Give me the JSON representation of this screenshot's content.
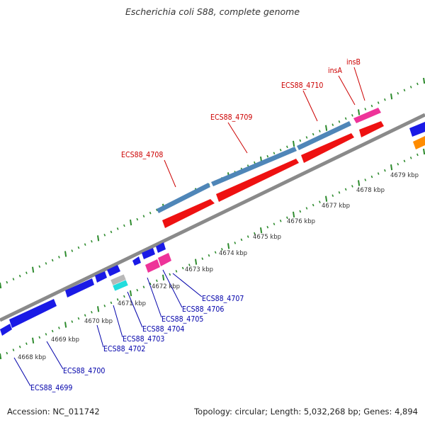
{
  "title": "Escherichia coli S88, complete genome",
  "footer": {
    "accession": "Accession: NC_011742",
    "stats": "Topology: circular; Length: 5,032,268 bp; Genes: 4,894"
  },
  "colors": {
    "backbone": "#8a8a8a",
    "tick_dots": "#2e8b2e",
    "gene_blue": "#1a1ae6",
    "gene_steelblue": "#4f86b8",
    "gene_red": "#ee1111",
    "gene_pink": "#ee3399",
    "gene_cyan": "#22dddd",
    "gene_grey": "#b8b8b8",
    "gene_orange": "#ff8c00",
    "label_red": "#cc0000",
    "label_blue": "#0000aa"
  },
  "ruler_ticks": [
    "4668 kbp",
    "4669 kbp",
    "4670 kbp",
    "4671 kbp",
    "4672 kbp",
    "4673 kbp",
    "4674 kbp",
    "4675 kbp",
    "4676 kbp",
    "4677 kbp",
    "4678 kbp",
    "4679 kbp"
  ],
  "gene_labels_top": [
    "ECS88_4708",
    "ECS88_4709",
    "ECS88_4710",
    "insA",
    "insB"
  ],
  "gene_labels_bottom": [
    "ECS88_4699",
    "ECS88_4700",
    "ECS88_4702",
    "ECS88_4703",
    "ECS88_4704",
    "ECS88_4705",
    "ECS88_4706",
    "ECS88_4707"
  ]
}
